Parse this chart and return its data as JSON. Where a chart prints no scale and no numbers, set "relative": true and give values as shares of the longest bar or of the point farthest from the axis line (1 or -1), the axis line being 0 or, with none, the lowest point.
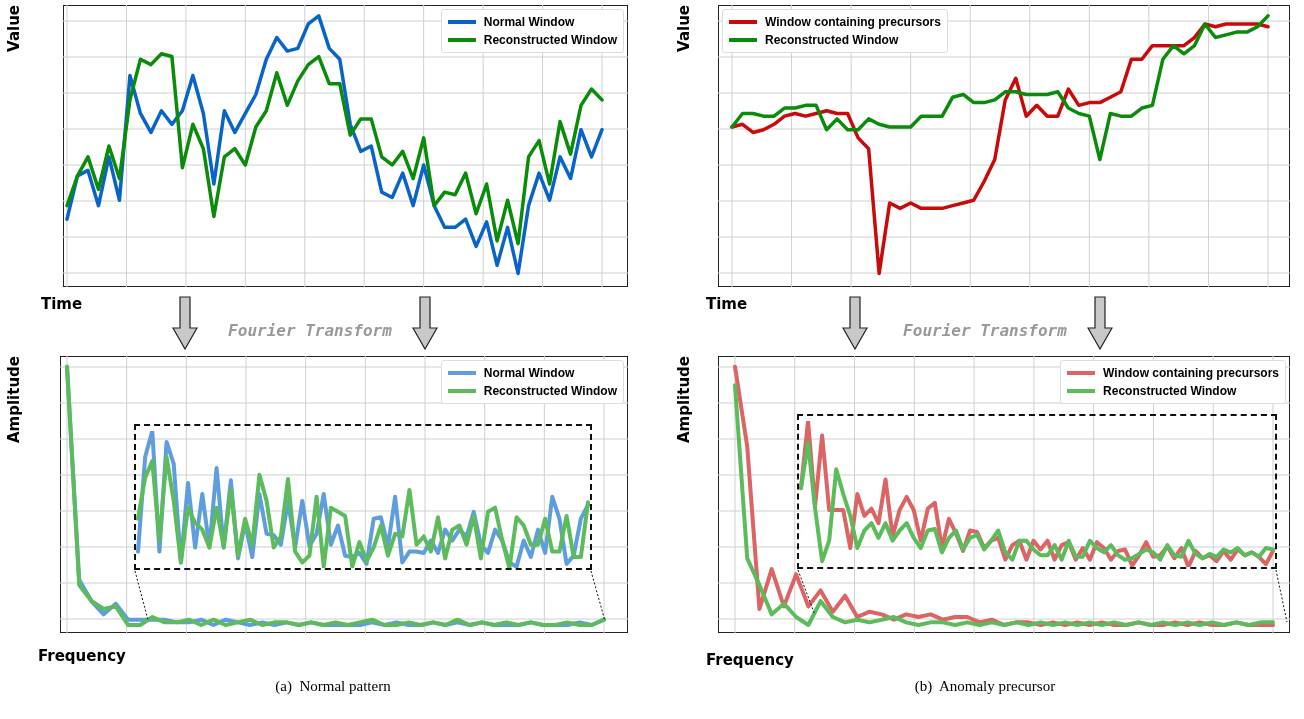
{
  "chart_data": [
    {
      "type": "line",
      "relative": true,
      "grid": true,
      "legend": "top right",
      "xlabel": "Time",
      "ylabel": "Value",
      "annotations": [
        "Fourier Transform"
      ],
      "categories": [
        null,
        null,
        null,
        null,
        null,
        null,
        null,
        null,
        null,
        null,
        null,
        null,
        null,
        null,
        null,
        null,
        null,
        null,
        null,
        null,
        null,
        null,
        null,
        null,
        null,
        null,
        null,
        null,
        null,
        null,
        null,
        null,
        null,
        null,
        null,
        null,
        null,
        null,
        null,
        null,
        null,
        null,
        null,
        null,
        null,
        null,
        null,
        null,
        null,
        null,
        null,
        null
      ],
      "series": [
        {
          "name": "Normal Window",
          "color": "#0a64c8",
          "values": [
            0.25,
            0.41,
            0.43,
            0.3,
            0.48,
            0.32,
            0.78,
            0.64,
            0.57,
            0.65,
            0.6,
            0.65,
            0.78,
            0.64,
            0.38,
            0.65,
            0.57,
            0.64,
            0.71,
            0.84,
            0.92,
            0.87,
            0.88,
            0.97,
            1.0,
            0.88,
            0.84,
            0.6,
            0.5,
            0.52,
            0.35,
            0.33,
            0.42,
            0.3,
            0.45,
            0.3,
            0.22,
            0.22,
            0.25,
            0.15,
            0.24,
            0.08,
            0.22,
            0.05,
            0.3,
            0.42,
            0.32,
            0.48,
            0.4,
            0.58,
            0.48,
            0.58
          ]
        },
        {
          "name": "Reconstructed Window",
          "color": "#0a8c0a",
          "values": [
            0.3,
            0.41,
            0.48,
            0.36,
            0.52,
            0.4,
            0.69,
            0.84,
            0.82,
            0.86,
            0.85,
            0.44,
            0.6,
            0.51,
            0.26,
            0.48,
            0.51,
            0.45,
            0.59,
            0.65,
            0.79,
            0.67,
            0.76,
            0.82,
            0.85,
            0.75,
            0.75,
            0.56,
            0.62,
            0.62,
            0.48,
            0.45,
            0.5,
            0.4,
            0.55,
            0.3,
            0.35,
            0.34,
            0.42,
            0.27,
            0.38,
            0.17,
            0.32,
            0.16,
            0.48,
            0.54,
            0.38,
            0.61,
            0.49,
            0.67,
            0.73,
            0.69
          ]
        }
      ]
    },
    {
      "type": "line",
      "relative": true,
      "grid": true,
      "legend": "top left",
      "xlabel": "Time",
      "ylabel": "Value",
      "annotations": [
        "Fourier Transform"
      ],
      "categories": [
        null,
        null,
        null,
        null,
        null,
        null,
        null,
        null,
        null,
        null,
        null,
        null,
        null,
        null,
        null,
        null,
        null,
        null,
        null,
        null,
        null,
        null,
        null,
        null,
        null,
        null,
        null,
        null,
        null,
        null,
        null,
        null,
        null,
        null,
        null,
        null,
        null,
        null,
        null,
        null,
        null,
        null,
        null,
        null,
        null,
        null,
        null,
        null,
        null,
        null,
        null,
        null
      ],
      "series": [
        {
          "name": "Window containing precursors",
          "color": "#c80a0a",
          "values": [
            0.59,
            0.6,
            0.57,
            0.58,
            0.6,
            0.63,
            0.64,
            0.63,
            0.64,
            0.65,
            0.64,
            0.64,
            0.55,
            0.51,
            0.05,
            0.31,
            0.29,
            0.31,
            0.29,
            0.29,
            0.29,
            0.3,
            0.31,
            0.32,
            0.39,
            0.47,
            0.69,
            0.77,
            0.63,
            0.67,
            0.63,
            0.63,
            0.73,
            0.67,
            0.68,
            0.68,
            0.7,
            0.72,
            0.84,
            0.84,
            0.89,
            0.89,
            0.89,
            0.89,
            0.92,
            0.97,
            0.96,
            0.97,
            0.97,
            0.97,
            0.97,
            0.96
          ]
        },
        {
          "name": "Reconstructed Window",
          "color": "#0a8c0a",
          "values": [
            0.59,
            0.64,
            0.64,
            0.63,
            0.63,
            0.66,
            0.66,
            0.67,
            0.67,
            0.58,
            0.62,
            0.58,
            0.58,
            0.62,
            0.6,
            0.59,
            0.59,
            0.59,
            0.63,
            0.63,
            0.63,
            0.7,
            0.71,
            0.68,
            0.68,
            0.69,
            0.72,
            0.72,
            0.71,
            0.71,
            0.71,
            0.72,
            0.66,
            0.64,
            0.63,
            0.47,
            0.64,
            0.63,
            0.63,
            0.66,
            0.67,
            0.84,
            0.89,
            0.86,
            0.89,
            0.97,
            0.92,
            0.93,
            0.94,
            0.94,
            0.96,
            1.0
          ]
        }
      ]
    },
    {
      "type": "line",
      "relative": true,
      "grid": true,
      "legend": "top right",
      "xlabel": "Frequency",
      "ylabel": "Amplitude",
      "annotations": [
        "(a)  Normal pattern"
      ],
      "categories": [
        null,
        null,
        null,
        null,
        null,
        null,
        null,
        null,
        null,
        null,
        null,
        null,
        null,
        null,
        null,
        null,
        null,
        null,
        null,
        null,
        null,
        null,
        null,
        null,
        null,
        null,
        null,
        null,
        null,
        null,
        null,
        null,
        null,
        null,
        null,
        null,
        null,
        null,
        null,
        null,
        null,
        null,
        null,
        null,
        null
      ],
      "series": [
        {
          "name": "Normal Window",
          "color": "#5f9ddc",
          "values": [
            1.0,
            0.2,
            0.12,
            0.07,
            0.11,
            0.05,
            0.05,
            0.05,
            0.05,
            0.04,
            0.04,
            0.05,
            0.03,
            0.05,
            0.04,
            0.03,
            0.04,
            0.03,
            0.04,
            0.03,
            0.04,
            0.03,
            0.03,
            0.03,
            0.03,
            0.04,
            0.03,
            0.04,
            0.03,
            0.03,
            0.04,
            0.03,
            0.04,
            0.03,
            0.04,
            0.03,
            0.03,
            0.03,
            0.04,
            0.03,
            0.03,
            0.03,
            0.04,
            0.03,
            0.05
          ]
        },
        {
          "name": "Reconstructed Window",
          "color": "#5cbc5c",
          "values": [
            1.0,
            0.18,
            0.12,
            0.09,
            0.1,
            0.03,
            0.03,
            0.06,
            0.04,
            0.04,
            0.05,
            0.03,
            0.05,
            0.03,
            0.04,
            0.05,
            0.03,
            0.04,
            0.04,
            0.03,
            0.04,
            0.03,
            0.04,
            0.03,
            0.04,
            0.05,
            0.03,
            0.03,
            0.04,
            0.03,
            0.04,
            0.03,
            0.05,
            0.03,
            0.04,
            0.03,
            0.04,
            0.03,
            0.04,
            0.03,
            0.03,
            0.04,
            0.03,
            0.03,
            0.05
          ]
        }
      ]
    },
    {
      "type": "line",
      "relative": true,
      "categories": [
        null,
        null,
        null,
        null,
        null,
        null,
        null,
        null,
        null,
        null,
        null,
        null,
        null,
        null,
        null,
        null,
        null,
        null,
        null,
        null,
        null,
        null,
        null,
        null,
        null,
        null,
        null,
        null,
        null,
        null,
        null,
        null,
        null,
        null,
        null,
        null,
        null,
        null,
        null,
        null,
        null,
        null,
        null,
        null,
        null,
        null,
        null,
        null,
        null,
        null,
        null,
        null,
        null,
        null,
        null,
        null,
        null,
        null,
        null,
        null,
        null,
        null,
        null,
        null
      ],
      "series": [
        {
          "color": "#5f9ddc",
          "values": [
            0.12,
            0.81,
            1.0,
            0.12,
            0.92,
            0.76,
            0.04,
            0.62,
            0.15,
            0.54,
            0.15,
            0.73,
            0.15,
            0.64,
            0.07,
            0.33,
            0.08,
            0.54,
            0.25,
            0.24,
            0.17,
            0.49,
            0.15,
            0.49,
            0.16,
            0.25,
            0.54,
            0.17,
            0.31,
            0.09,
            0.08,
            0.11,
            0.03,
            0.36,
            0.37,
            0.16,
            0.52,
            0.04,
            0.12,
            0.12,
            0.11,
            0.2,
            0.11,
            0.28,
            0.2,
            0.28,
            0.23,
            0.41,
            0.17,
            0.11,
            0.28,
            0.2,
            0.04,
            0.01,
            0.2,
            0.08,
            0.28,
            0.11,
            0.52,
            0.36,
            0.03,
            0.09,
            0.36,
            0.46
          ]
        },
        {
          "color": "#5cbc5c",
          "values": [
            0.36,
            0.66,
            0.78,
            0.2,
            0.81,
            0.49,
            0.04,
            0.44,
            0.33,
            0.28,
            0.15,
            0.44,
            0.15,
            0.57,
            0.09,
            0.36,
            0.17,
            0.68,
            0.49,
            0.15,
            0.23,
            0.65,
            0.12,
            0.04,
            0.09,
            0.52,
            0.01,
            0.44,
            0.41,
            0.38,
            0.01,
            0.19,
            0.05,
            0.15,
            0.31,
            0.09,
            0.25,
            0.23,
            0.57,
            0.17,
            0.23,
            0.12,
            0.37,
            0.07,
            0.28,
            0.31,
            0.17,
            0.38,
            0.07,
            0.41,
            0.44,
            0.2,
            0,
            0.37,
            0.31,
            0.17,
            0.17,
            0.36,
            0.12,
            0.12,
            0.38,
            0.08,
            0.08,
            0.48
          ]
        }
      ]
    },
    {
      "type": "line",
      "relative": true,
      "grid": true,
      "legend": "top right",
      "xlabel": "Frequency",
      "ylabel": "Amplitude",
      "annotations": [
        "(b)  Anomaly precursor"
      ],
      "categories": [
        null,
        null,
        null,
        null,
        null,
        null,
        null,
        null,
        null,
        null,
        null,
        null,
        null,
        null,
        null,
        null,
        null,
        null,
        null,
        null,
        null,
        null,
        null,
        null,
        null,
        null,
        null,
        null,
        null,
        null,
        null,
        null,
        null,
        null,
        null,
        null,
        null,
        null,
        null,
        null,
        null,
        null,
        null,
        null,
        null
      ],
      "series": [
        {
          "name": "Window containing precursors",
          "color": "#dc6464",
          "values": [
            1.0,
            0.7,
            0.09,
            0.24,
            0.1,
            0.22,
            0.1,
            0.16,
            0.08,
            0.14,
            0.06,
            0.08,
            0.07,
            0.05,
            0.07,
            0.06,
            0.07,
            0.05,
            0.06,
            0.06,
            0.04,
            0.05,
            0.03,
            0.04,
            0.04,
            0.03,
            0.04,
            0.03,
            0.04,
            0.03,
            0.04,
            0.03,
            0.03,
            0.04,
            0.03,
            0.03,
            0.04,
            0.03,
            0.04,
            0.03,
            0.03,
            0.04,
            0.03,
            0.03,
            0.03
          ]
        },
        {
          "name": "Reconstructed Window",
          "color": "#5cbc5c",
          "values": [
            0.93,
            0.28,
            0.18,
            0.07,
            0.11,
            0.06,
            0.03,
            0.12,
            0.06,
            0.04,
            0.05,
            0.04,
            0.05,
            0.06,
            0.04,
            0.03,
            0.04,
            0.04,
            0.03,
            0.04,
            0.03,
            0.04,
            0.03,
            0.04,
            0.03,
            0.04,
            0.03,
            0.04,
            0.03,
            0.04,
            0.03,
            0.04,
            0.03,
            0.04,
            0.03,
            0.04,
            0.03,
            0.04,
            0.03,
            0.04,
            0.03,
            0.04,
            0.03,
            0.04,
            0.04
          ]
        }
      ]
    },
    {
      "type": "line",
      "relative": true,
      "categories": [
        null,
        null,
        null,
        null,
        null,
        null,
        null,
        null,
        null,
        null,
        null,
        null,
        null,
        null,
        null,
        null,
        null,
        null,
        null,
        null,
        null,
        null,
        null,
        null,
        null,
        null,
        null,
        null,
        null,
        null,
        null,
        null,
        null,
        null,
        null,
        null,
        null,
        null,
        null,
        null,
        null,
        null,
        null,
        null,
        null,
        null,
        null,
        null,
        null,
        null,
        null,
        null,
        null,
        null,
        null,
        null,
        null,
        null,
        null,
        null,
        null,
        null,
        null,
        null,
        null,
        null,
        null,
        null
      ],
      "series": [
        {
          "color": "#dc6464",
          "values": [
            0.54,
            1.0,
            0.42,
            0.9,
            0.39,
            0.39,
            0.39,
            0.13,
            0.5,
            0.35,
            0.4,
            0.3,
            0.6,
            0.21,
            0.39,
            0.48,
            0.39,
            0.18,
            0.4,
            0.44,
            0.13,
            0.33,
            0.23,
            0.11,
            0.25,
            0.24,
            0.13,
            0.18,
            0.2,
            0.05,
            0.15,
            0.18,
            0.05,
            0.18,
            0.12,
            0.18,
            0.05,
            0.15,
            0.17,
            0.05,
            0.13,
            0.05,
            0.17,
            0.13,
            0.05,
            0.11,
            0.12,
            0.01,
            0.08,
            0.17,
            0.07,
            0.08,
            0.14,
            0.06,
            0.13,
            0,
            0.11,
            0.06,
            0.08,
            0.04,
            0.11,
            0.05,
            0.12,
            0.08,
            0.1,
            0.07,
            0.02,
            0.11
          ]
        },
        {
          "color": "#5cbc5c",
          "values": [
            0.54,
            0.85,
            0.4,
            0.04,
            0.18,
            0.67,
            0.5,
            0.35,
            0.13,
            0.25,
            0.3,
            0.2,
            0.3,
            0.18,
            0.25,
            0.3,
            0.2,
            0.13,
            0.25,
            0.26,
            0.1,
            0.2,
            0.25,
            0.12,
            0.2,
            0.22,
            0.12,
            0.18,
            0.25,
            0.1,
            0.05,
            0.18,
            0.18,
            0.12,
            0.08,
            0.08,
            0.15,
            0.05,
            0.18,
            0.07,
            0.07,
            0.18,
            0.13,
            0.1,
            0.15,
            0.08,
            0.05,
            0.06,
            0.09,
            0.12,
            0.1,
            0.05,
            0.15,
            0.08,
            0.07,
            0.18,
            0.09,
            0.06,
            0.09,
            0.07,
            0.12,
            0.1,
            0.13,
            0.08,
            0.1,
            0.07,
            0.13,
            0.12
          ]
        }
      ]
    }
  ]
}
